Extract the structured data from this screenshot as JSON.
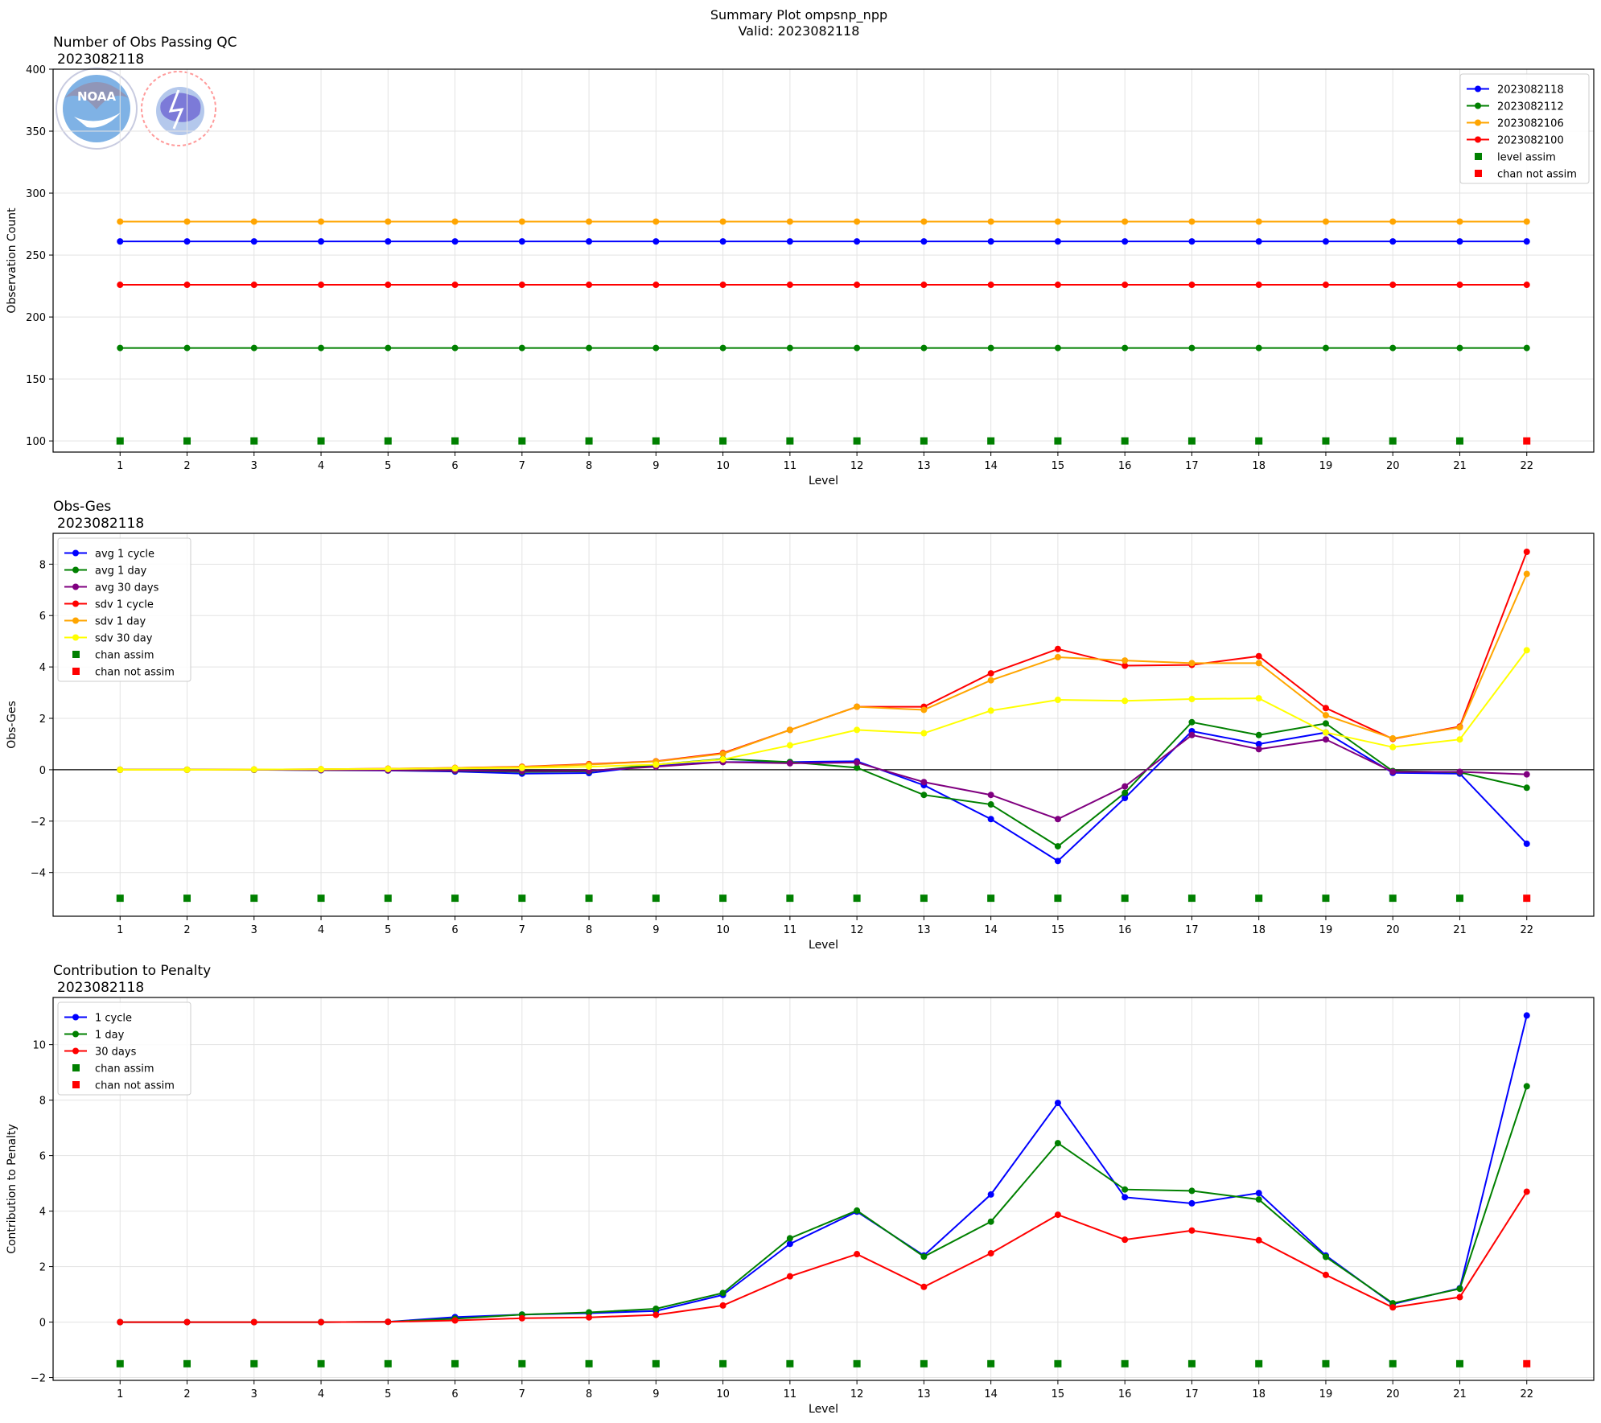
{
  "figure": {
    "title_line1": "Summary Plot ompsnp_npp",
    "title_line2": "Valid: 2023082118"
  },
  "logos": {
    "noaa": {
      "wordmark": "NOAA",
      "ring_text": "NATIONAL OCEANIC AND ATMOSPHERIC ADMINISTRATION · U.S. DEPARTMENT OF COMMERCE"
    },
    "nws": {
      "ring_text": "NATIONAL WEATHER SERVICE"
    }
  },
  "chart_data": [
    {
      "type": "line",
      "title": "Number of Obs Passing QC",
      "subtitle": "2023082118",
      "xlabel": "Level",
      "ylabel": "Observation Count",
      "x": [
        1,
        2,
        3,
        4,
        5,
        6,
        7,
        8,
        9,
        10,
        11,
        12,
        13,
        14,
        15,
        16,
        17,
        18,
        19,
        20,
        21,
        22
      ],
      "xlim": [
        0,
        23
      ],
      "ylim": [
        91,
        400
      ],
      "yticks": [
        100,
        150,
        200,
        250,
        300,
        350,
        400
      ],
      "grid": true,
      "legend_position": "top-right",
      "series": [
        {
          "name": "2023082118",
          "color": "#0000ff",
          "values": [
            261,
            261,
            261,
            261,
            261,
            261,
            261,
            261,
            261,
            261,
            261,
            261,
            261,
            261,
            261,
            261,
            261,
            261,
            261,
            261,
            261,
            261
          ]
        },
        {
          "name": "2023082112",
          "color": "#008000",
          "values": [
            175,
            175,
            175,
            175,
            175,
            175,
            175,
            175,
            175,
            175,
            175,
            175,
            175,
            175,
            175,
            175,
            175,
            175,
            175,
            175,
            175,
            175
          ]
        },
        {
          "name": "2023082106",
          "color": "#ffa500",
          "values": [
            277,
            277,
            277,
            277,
            277,
            277,
            277,
            277,
            277,
            277,
            277,
            277,
            277,
            277,
            277,
            277,
            277,
            277,
            277,
            277,
            277,
            277
          ]
        },
        {
          "name": "2023082100",
          "color": "#ff0000",
          "values": [
            226,
            226,
            226,
            226,
            226,
            226,
            226,
            226,
            226,
            226,
            226,
            226,
            226,
            226,
            226,
            226,
            226,
            226,
            226,
            226,
            226,
            226
          ]
        }
      ],
      "markers": {
        "y": 100,
        "assim_name": "level assim",
        "not_assim_name": "chan not assim",
        "assim_color": "#008000",
        "not_assim_color": "#ff0000",
        "assimilated": [
          true,
          true,
          true,
          true,
          true,
          true,
          true,
          true,
          true,
          true,
          true,
          true,
          true,
          true,
          true,
          true,
          true,
          true,
          true,
          true,
          true,
          false
        ]
      }
    },
    {
      "type": "line",
      "title": "Obs-Ges",
      "subtitle": "2023082118",
      "xlabel": "Level",
      "ylabel": "Obs-Ges",
      "x": [
        1,
        2,
        3,
        4,
        5,
        6,
        7,
        8,
        9,
        10,
        11,
        12,
        13,
        14,
        15,
        16,
        17,
        18,
        19,
        20,
        21,
        22
      ],
      "xlim": [
        0,
        23
      ],
      "ylim": [
        -5.7,
        9.2
      ],
      "yticks": [
        -4,
        -2,
        0,
        2,
        4,
        6,
        8
      ],
      "zero_line": true,
      "grid": true,
      "legend_position": "top-left",
      "series": [
        {
          "name": "avg 1 cycle",
          "color": "#0000ff",
          "values": [
            0,
            0,
            0,
            -0.02,
            -0.03,
            -0.07,
            -0.15,
            -0.13,
            0.18,
            0.3,
            0.3,
            0.33,
            -0.6,
            -1.92,
            -3.55,
            -1.1,
            1.5,
            1.0,
            1.45,
            -0.12,
            -0.15,
            -2.88
          ]
        },
        {
          "name": "avg 1 day",
          "color": "#008000",
          "values": [
            0,
            0,
            0,
            -0.01,
            -0.02,
            -0.04,
            -0.08,
            -0.06,
            0.2,
            0.42,
            0.3,
            0.08,
            -0.98,
            -1.35,
            -2.98,
            -0.9,
            1.85,
            1.35,
            1.8,
            -0.05,
            -0.1,
            -0.7
          ]
        },
        {
          "name": "avg 30 days",
          "color": "#800080",
          "values": [
            0,
            0,
            0,
            -0.01,
            -0.02,
            -0.03,
            -0.05,
            -0.04,
            0.12,
            0.3,
            0.25,
            0.28,
            -0.48,
            -0.98,
            -1.92,
            -0.65,
            1.35,
            0.8,
            1.18,
            -0.08,
            -0.08,
            -0.18
          ]
        },
        {
          "name": "sdv 1 cycle",
          "color": "#ff0000",
          "values": [
            0,
            0,
            0.01,
            0.02,
            0.04,
            0.07,
            0.12,
            0.22,
            0.33,
            0.65,
            1.55,
            2.45,
            2.45,
            3.75,
            4.7,
            4.05,
            4.08,
            4.42,
            2.4,
            1.2,
            1.68,
            8.48
          ]
        },
        {
          "name": "sdv 1 day",
          "color": "#ffa500",
          "values": [
            0,
            0,
            0.01,
            0.02,
            0.04,
            0.07,
            0.11,
            0.2,
            0.32,
            0.62,
            1.55,
            2.45,
            2.33,
            3.48,
            4.38,
            4.25,
            4.15,
            4.15,
            2.12,
            1.22,
            1.65,
            7.62
          ]
        },
        {
          "name": "sdv 30 day",
          "color": "#ffff00",
          "values": [
            0,
            0,
            0.01,
            0.02,
            0.03,
            0.05,
            0.07,
            0.12,
            0.2,
            0.4,
            0.95,
            1.55,
            1.42,
            2.3,
            2.72,
            2.68,
            2.75,
            2.78,
            1.45,
            0.88,
            1.18,
            4.65
          ]
        }
      ],
      "markers": {
        "y": -5,
        "assim_name": "chan assim",
        "not_assim_name": "chan not assim",
        "assim_color": "#008000",
        "not_assim_color": "#ff0000",
        "assimilated": [
          true,
          true,
          true,
          true,
          true,
          true,
          true,
          true,
          true,
          true,
          true,
          true,
          true,
          true,
          true,
          true,
          true,
          true,
          true,
          true,
          true,
          false
        ]
      }
    },
    {
      "type": "line",
      "title": "Contribution to Penalty",
      "subtitle": "2023082118",
      "xlabel": "Level",
      "ylabel": "Contribution to Penalty",
      "x": [
        1,
        2,
        3,
        4,
        5,
        6,
        7,
        8,
        9,
        10,
        11,
        12,
        13,
        14,
        15,
        16,
        17,
        18,
        19,
        20,
        21,
        22
      ],
      "xlim": [
        0,
        23
      ],
      "ylim": [
        -2.1,
        11.7
      ],
      "yticks": [
        -2,
        0,
        2,
        4,
        6,
        8,
        10
      ],
      "grid": true,
      "legend_position": "top-left",
      "series": [
        {
          "name": "1 cycle",
          "color": "#0000ff",
          "values": [
            0,
            0,
            0,
            0,
            0.01,
            0.18,
            0.27,
            0.32,
            0.4,
            0.98,
            2.82,
            3.98,
            2.4,
            4.6,
            7.9,
            4.5,
            4.28,
            4.65,
            2.4,
            0.65,
            1.22,
            11.05
          ]
        },
        {
          "name": "1 day",
          "color": "#008000",
          "values": [
            0,
            0,
            0,
            0,
            0.01,
            0.12,
            0.27,
            0.35,
            0.48,
            1.05,
            3.02,
            4.02,
            2.36,
            3.62,
            6.45,
            4.78,
            4.73,
            4.42,
            2.35,
            0.68,
            1.2,
            8.5
          ]
        },
        {
          "name": "30 days",
          "color": "#ff0000",
          "values": [
            0,
            0,
            0,
            0,
            0.01,
            0.06,
            0.14,
            0.17,
            0.26,
            0.6,
            1.65,
            2.45,
            1.27,
            2.48,
            3.87,
            2.97,
            3.3,
            2.95,
            1.7,
            0.53,
            0.9,
            4.7
          ]
        }
      ],
      "markers": {
        "y": -1.5,
        "assim_name": "chan assim",
        "not_assim_name": "chan not assim",
        "assim_color": "#008000",
        "not_assim_color": "#ff0000",
        "assimilated": [
          true,
          true,
          true,
          true,
          true,
          true,
          true,
          true,
          true,
          true,
          true,
          true,
          true,
          true,
          true,
          true,
          true,
          true,
          true,
          true,
          true,
          false
        ]
      }
    }
  ]
}
